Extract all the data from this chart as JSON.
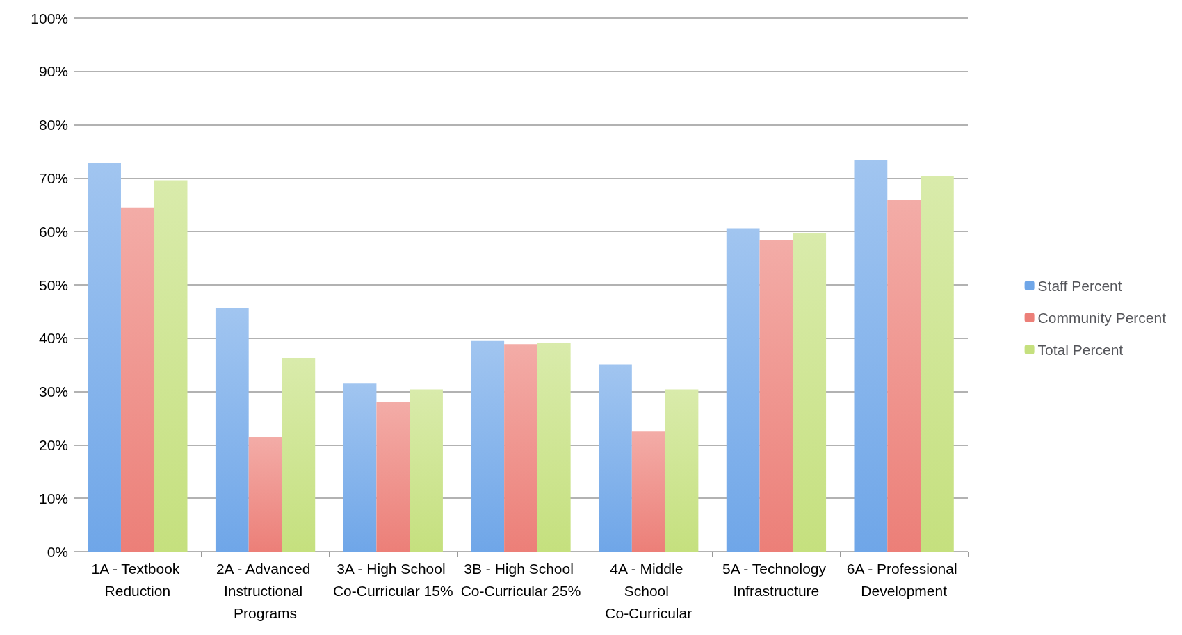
{
  "chart_data": {
    "type": "bar",
    "categories": [
      "1A - Textbook Reduction",
      "2A - Advanced Instructional Programs",
      "3A - High School Co-Curricular 15%",
      "3B - High School Co-Curricular 25%",
      "4A - Middle School Co-Curricular",
      "5A - Technology Infrastructure",
      "6A - Professional Development"
    ],
    "series": [
      {
        "name": "Staff Percent",
        "color": "#6fa6e8",
        "values": [
          72.9,
          45.6,
          31.6,
          39.5,
          35.1,
          60.6,
          73.3
        ]
      },
      {
        "name": "Community Percent",
        "color": "#ec7f78",
        "values": [
          64.5,
          21.5,
          28.0,
          38.9,
          22.5,
          58.4,
          65.9
        ]
      },
      {
        "name": "Total Percent",
        "color": "#c5e07e",
        "values": [
          69.6,
          36.2,
          30.4,
          39.2,
          30.4,
          59.7,
          70.4
        ]
      }
    ],
    "ylim": [
      0,
      100
    ],
    "yticks": [
      {
        "value": 0,
        "label": "0%"
      },
      {
        "value": 10,
        "label": "10%"
      },
      {
        "value": 20,
        "label": "20%"
      },
      {
        "value": 30,
        "label": "30%"
      },
      {
        "value": 40,
        "label": "40%"
      },
      {
        "value": 50,
        "label": "50%"
      },
      {
        "value": 60,
        "label": "60%"
      },
      {
        "value": 70,
        "label": "70%"
      },
      {
        "value": 80,
        "label": "80%"
      },
      {
        "value": 90,
        "label": "90%"
      },
      {
        "value": 100,
        "label": "100%"
      }
    ],
    "grid": "y",
    "legend": "right"
  }
}
